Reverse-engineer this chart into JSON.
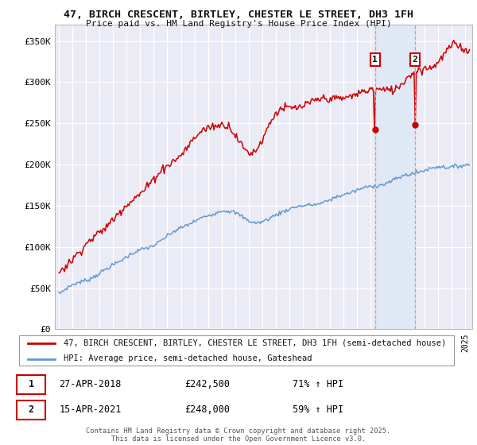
{
  "title": "47, BIRCH CRESCENT, BIRTLEY, CHESTER LE STREET, DH3 1FH",
  "subtitle": "Price paid vs. HM Land Registry's House Price Index (HPI)",
  "ylim": [
    0,
    370000
  ],
  "yticks": [
    0,
    50000,
    100000,
    150000,
    200000,
    250000,
    300000,
    350000
  ],
  "ytick_labels": [
    "£0",
    "£50K",
    "£100K",
    "£150K",
    "£200K",
    "£250K",
    "£300K",
    "£350K"
  ],
  "xlim_start": 1994.7,
  "xlim_end": 2025.5,
  "background_color": "#ffffff",
  "plot_bg_color": "#ebebf5",
  "grid_color": "#ffffff",
  "shade_color": "#dde8f5",
  "legend_label_red": "47, BIRCH CRESCENT, BIRTLEY, CHESTER LE STREET, DH3 1FH (semi-detached house)",
  "legend_label_blue": "HPI: Average price, semi-detached house, Gateshead",
  "sale1_date": "27-APR-2018",
  "sale1_price": "£242,500",
  "sale1_hpi": "71% ↑ HPI",
  "sale2_date": "15-APR-2021",
  "sale2_price": "£248,000",
  "sale2_hpi": "59% ↑ HPI",
  "footer": "Contains HM Land Registry data © Crown copyright and database right 2025.\nThis data is licensed under the Open Government Licence v3.0.",
  "marker1_year": 2018.33,
  "marker1_value": 242500,
  "marker2_year": 2021.29,
  "marker2_value": 248000,
  "red_color": "#cc0000",
  "blue_color": "#6699cc",
  "marker_line_color": "#ff8888",
  "label_box_color": "#cc0000"
}
